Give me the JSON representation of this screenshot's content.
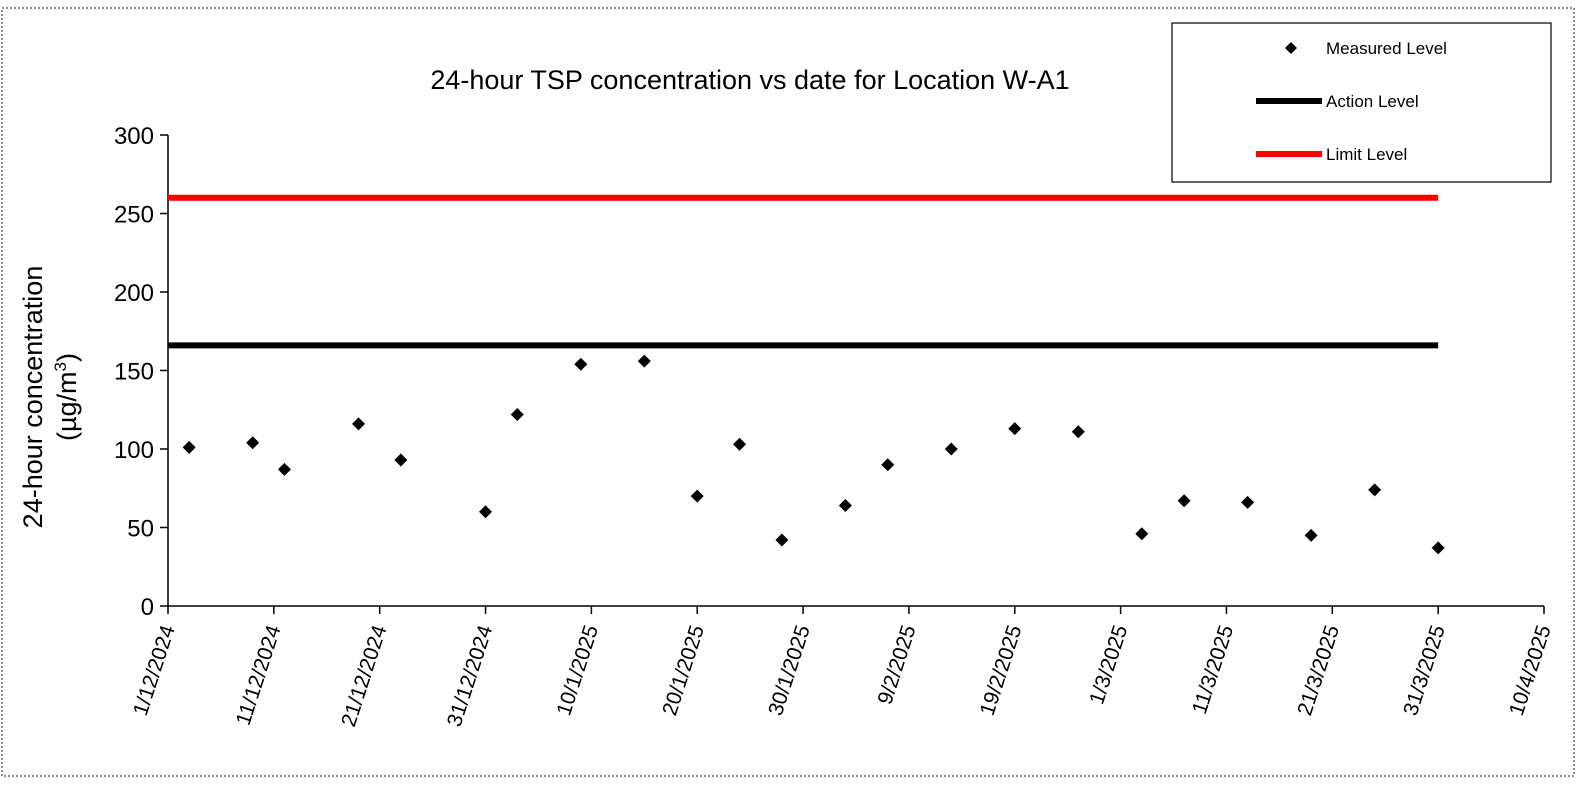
{
  "chart_data": {
    "type": "scatter",
    "title": "24-hour TSP concentration vs date for Location W-A1",
    "ylabel_line1": "24-hour concentration",
    "ylabel_line2_prefix": "(µg/m",
    "ylabel_line2_sup": "3",
    "ylabel_line2_suffix": ")",
    "ylim": [
      0,
      300
    ],
    "yticks": [
      "0",
      "50",
      "100",
      "150",
      "200",
      "250",
      "300"
    ],
    "xlim": [
      "2024-12-01",
      "2025-04-10"
    ],
    "xticks": [
      "1/12/2024",
      "11/12/2024",
      "21/12/2024",
      "31/12/2024",
      "10/1/2025",
      "20/1/2025",
      "30/1/2025",
      "9/2/2025",
      "19/2/2025",
      "1/3/2025",
      "11/3/2025",
      "21/3/2025",
      "31/3/2025",
      "10/4/2025"
    ],
    "series": [
      {
        "name": "Measured Level",
        "kind": "scatter",
        "color": "#000000",
        "points": [
          {
            "x": "2024-12-03",
            "y": 101
          },
          {
            "x": "2024-12-09",
            "y": 104
          },
          {
            "x": "2024-12-12",
            "y": 87
          },
          {
            "x": "2024-12-19",
            "y": 116
          },
          {
            "x": "2024-12-23",
            "y": 93
          },
          {
            "x": "2024-12-31",
            "y": 60
          },
          {
            "x": "2025-01-03",
            "y": 122
          },
          {
            "x": "2025-01-09",
            "y": 154
          },
          {
            "x": "2025-01-15",
            "y": 156
          },
          {
            "x": "2025-01-20",
            "y": 70
          },
          {
            "x": "2025-01-24",
            "y": 103
          },
          {
            "x": "2025-01-28",
            "y": 42
          },
          {
            "x": "2025-02-03",
            "y": 64
          },
          {
            "x": "2025-02-07",
            "y": 90
          },
          {
            "x": "2025-02-13",
            "y": 100
          },
          {
            "x": "2025-02-19",
            "y": 113
          },
          {
            "x": "2025-02-25",
            "y": 111
          },
          {
            "x": "2025-03-03",
            "y": 46
          },
          {
            "x": "2025-03-07",
            "y": 67
          },
          {
            "x": "2025-03-13",
            "y": 66
          },
          {
            "x": "2025-03-19",
            "y": 45
          },
          {
            "x": "2025-03-25",
            "y": 74
          },
          {
            "x": "2025-03-31",
            "y": 37
          }
        ]
      },
      {
        "name": "Action Level",
        "kind": "line",
        "color": "#000000",
        "x": [
          "2024-12-01",
          "2025-03-31"
        ],
        "y": [
          166,
          166
        ]
      },
      {
        "name": "Limit Level",
        "kind": "line",
        "color": "#ff0000",
        "x": [
          "2024-12-01",
          "2025-03-31"
        ],
        "y": [
          260,
          260
        ]
      }
    ],
    "legend_position": "top-right",
    "grid": false
  }
}
